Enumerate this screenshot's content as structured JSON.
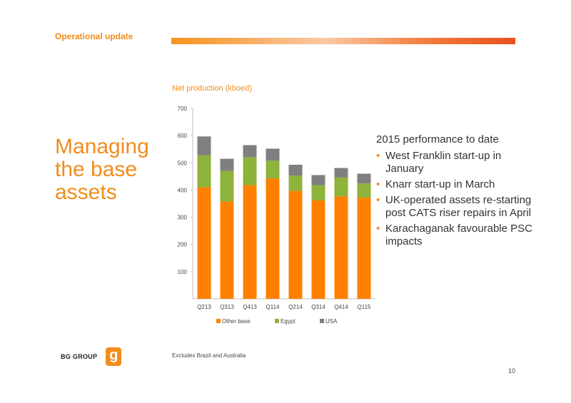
{
  "header": {
    "section_title": "Operational update"
  },
  "main": {
    "title": "Managing the base assets",
    "chart_title": "Net production (kboed)",
    "bullets_heading": "2015 performance to date",
    "bullets": [
      "West Franklin start-up in January",
      "Knarr start-up in March",
      "UK-operated assets re-starting post CATS riser repairs in April",
      "Karachaganak favourable PSC impacts"
    ]
  },
  "footer": {
    "logo_text": "BG GROUP",
    "logo_mark": "g",
    "footnote": "Excludes Brazil and Australia",
    "page_number": "10"
  },
  "colors": {
    "accent": "#f28c1c",
    "other_base": "#ff8000",
    "egypt": "#8db33a",
    "usa": "#7f7f7f"
  },
  "chart_data": {
    "type": "bar",
    "stacked": true,
    "title": "Net production (kboed)",
    "categories": [
      "Q213",
      "Q313",
      "Q413",
      "Q114",
      "Q214",
      "Q314",
      "Q414",
      "Q115"
    ],
    "series": [
      {
        "name": "Other base",
        "color": "#ff8000",
        "values": [
          410,
          358,
          418,
          443,
          397,
          362,
          377,
          372
        ]
      },
      {
        "name": "Egypt",
        "color": "#8db33a",
        "values": [
          118,
          112,
          102,
          65,
          56,
          56,
          69,
          52
        ]
      },
      {
        "name": "USA",
        "color": "#7f7f7f",
        "values": [
          69,
          45,
          45,
          44,
          40,
          37,
          35,
          36
        ]
      }
    ],
    "ylim": [
      0,
      700
    ],
    "yticks": [
      100,
      200,
      300,
      400,
      500,
      600,
      700
    ],
    "grid": false,
    "legend": "bottom"
  }
}
